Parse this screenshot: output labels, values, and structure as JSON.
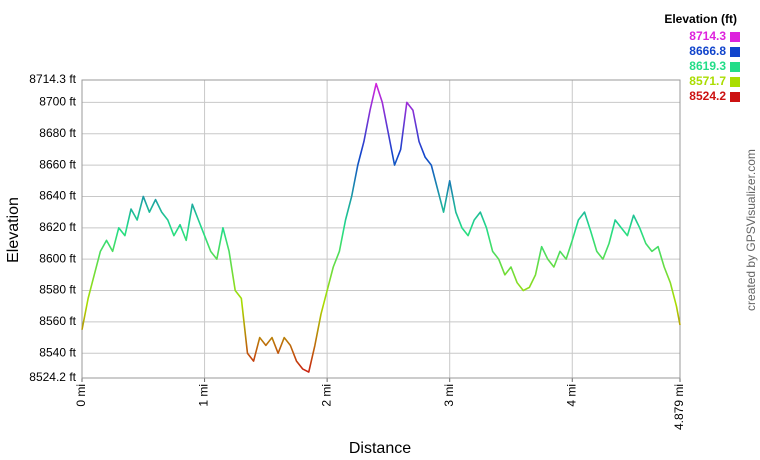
{
  "chart_data": {
    "type": "line",
    "y_label": "Elevation",
    "x_label": "Distance",
    "legend_title": "Elevation (ft)",
    "credit": "created by GPSVisualizer.com",
    "color_scale": [
      {
        "value": 8714.3,
        "color": "#dd22dd"
      },
      {
        "value": 8666.8,
        "color": "#1144cc"
      },
      {
        "value": 8619.3,
        "color": "#22dd88"
      },
      {
        "value": 8571.7,
        "color": "#aadd00"
      },
      {
        "value": 8524.2,
        "color": "#cc1111"
      }
    ],
    "xlim": [
      0,
      4.879
    ],
    "xticks": [
      {
        "value": 0,
        "label": "0 mi"
      },
      {
        "value": 1,
        "label": "1 mi"
      },
      {
        "value": 2,
        "label": "2 mi"
      },
      {
        "value": 3,
        "label": "3 mi"
      },
      {
        "value": 4,
        "label": "4 mi"
      },
      {
        "value": 4.879,
        "label": "4.879 mi"
      }
    ],
    "ylim": [
      8524.2,
      8714.3
    ],
    "yticks": [
      {
        "value": 8524.2,
        "label": "8524.2 ft"
      },
      {
        "value": 8540,
        "label": "8540 ft"
      },
      {
        "value": 8560,
        "label": "8560 ft"
      },
      {
        "value": 8580,
        "label": "8580 ft"
      },
      {
        "value": 8600,
        "label": "8600 ft"
      },
      {
        "value": 8620,
        "label": "8620 ft"
      },
      {
        "value": 8640,
        "label": "8640 ft"
      },
      {
        "value": 8660,
        "label": "8660 ft"
      },
      {
        "value": 8680,
        "label": "8680 ft"
      },
      {
        "value": 8700,
        "label": "8700 ft"
      },
      {
        "value": 8714.3,
        "label": "8714.3 ft"
      }
    ],
    "grid": true,
    "x": [
      0,
      0.05,
      0.1,
      0.15,
      0.2,
      0.25,
      0.3,
      0.35,
      0.4,
      0.45,
      0.5,
      0.55,
      0.6,
      0.65,
      0.7,
      0.75,
      0.8,
      0.85,
      0.9,
      0.95,
      1.0,
      1.05,
      1.1,
      1.15,
      1.2,
      1.25,
      1.3,
      1.35,
      1.4,
      1.45,
      1.5,
      1.55,
      1.6,
      1.65,
      1.7,
      1.75,
      1.8,
      1.85,
      1.9,
      1.95,
      2.0,
      2.05,
      2.1,
      2.15,
      2.2,
      2.25,
      2.3,
      2.35,
      2.4,
      2.45,
      2.5,
      2.55,
      2.6,
      2.65,
      2.7,
      2.75,
      2.8,
      2.85,
      2.9,
      2.95,
      3.0,
      3.05,
      3.1,
      3.15,
      3.2,
      3.25,
      3.3,
      3.35,
      3.4,
      3.45,
      3.5,
      3.55,
      3.6,
      3.65,
      3.7,
      3.75,
      3.8,
      3.85,
      3.9,
      3.95,
      4.0,
      4.05,
      4.1,
      4.15,
      4.2,
      4.25,
      4.3,
      4.35,
      4.4,
      4.45,
      4.5,
      4.55,
      4.6,
      4.65,
      4.7,
      4.75,
      4.8,
      4.85,
      4.879
    ],
    "values": [
      8555,
      8575,
      8590,
      8605,
      8612,
      8605,
      8620,
      8615,
      8632,
      8625,
      8640,
      8630,
      8638,
      8630,
      8625,
      8615,
      8622,
      8612,
      8635,
      8625,
      8615,
      8605,
      8600,
      8620,
      8605,
      8580,
      8575,
      8540,
      8535,
      8550,
      8545,
      8550,
      8540,
      8550,
      8545,
      8535,
      8530,
      8528,
      8545,
      8565,
      8580,
      8595,
      8605,
      8625,
      8640,
      8660,
      8675,
      8695,
      8712,
      8700,
      8680,
      8660,
      8670,
      8700,
      8695,
      8675,
      8665,
      8660,
      8645,
      8630,
      8650,
      8630,
      8620,
      8615,
      8625,
      8630,
      8620,
      8605,
      8600,
      8590,
      8595,
      8585,
      8580,
      8582,
      8590,
      8608,
      8600,
      8595,
      8605,
      8600,
      8612,
      8625,
      8630,
      8618,
      8605,
      8600,
      8610,
      8625,
      8620,
      8615,
      8628,
      8620,
      8610,
      8605,
      8608,
      8595,
      8585,
      8570,
      8558
    ]
  }
}
